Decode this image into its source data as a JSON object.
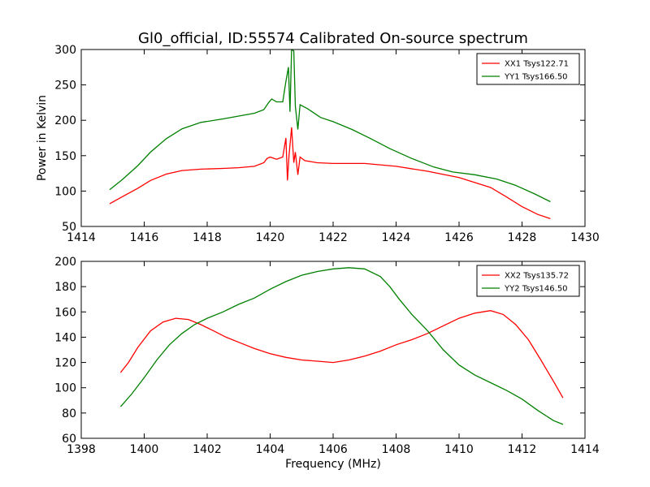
{
  "figure": {
    "title": "Gl0_official, ID:55574 Calibrated On-source spectrum"
  },
  "chart_data": [
    {
      "type": "line",
      "title": "Gl0_official, ID:55574 Calibrated On-source spectrum",
      "xlabel": "",
      "ylabel": "Power in Kelvin",
      "xlim": [
        1414,
        1430
      ],
      "ylim": [
        50,
        300
      ],
      "xticks": [
        1414,
        1416,
        1418,
        1420,
        1422,
        1424,
        1426,
        1428,
        1430
      ],
      "yticks": [
        50,
        100,
        150,
        200,
        250,
        300
      ],
      "grid": false,
      "legend_position": "top-right",
      "series": [
        {
          "name": "XX1 Tsys122.71",
          "color": "#ff0000",
          "points": [
            [
              1414.9,
              82
            ],
            [
              1415.3,
              92
            ],
            [
              1415.8,
              104
            ],
            [
              1416.2,
              115
            ],
            [
              1416.7,
              124
            ],
            [
              1417.2,
              129
            ],
            [
              1417.8,
              131
            ],
            [
              1418.5,
              132
            ],
            [
              1419.0,
              133
            ],
            [
              1419.5,
              135
            ],
            [
              1419.8,
              140
            ],
            [
              1419.9,
              146
            ],
            [
              1420.0,
              148
            ],
            [
              1420.2,
              145
            ],
            [
              1420.4,
              148
            ],
            [
              1420.5,
              175
            ],
            [
              1420.55,
              115
            ],
            [
              1420.6,
              150
            ],
            [
              1420.68,
              190
            ],
            [
              1420.75,
              140
            ],
            [
              1420.8,
              155
            ],
            [
              1420.88,
              123
            ],
            [
              1420.95,
              148
            ],
            [
              1421.1,
              143
            ],
            [
              1421.5,
              140
            ],
            [
              1422.0,
              139
            ],
            [
              1423.0,
              139
            ],
            [
              1424.0,
              135
            ],
            [
              1425.0,
              128
            ],
            [
              1426.0,
              119
            ],
            [
              1426.5,
              112
            ],
            [
              1427.0,
              105
            ],
            [
              1427.5,
              92
            ],
            [
              1428.0,
              78
            ],
            [
              1428.5,
              67
            ],
            [
              1428.9,
              61
            ]
          ]
        },
        {
          "name": "YY1 Tsys166.50",
          "color": "#008000",
          "points": [
            [
              1414.9,
              102
            ],
            [
              1415.3,
              116
            ],
            [
              1415.8,
              136
            ],
            [
              1416.2,
              155
            ],
            [
              1416.7,
              174
            ],
            [
              1417.2,
              188
            ],
            [
              1417.8,
              197
            ],
            [
              1418.5,
              202
            ],
            [
              1419.0,
              206
            ],
            [
              1419.5,
              210
            ],
            [
              1419.8,
              215
            ],
            [
              1419.95,
              225
            ],
            [
              1420.05,
              230
            ],
            [
              1420.2,
              226
            ],
            [
              1420.4,
              226
            ],
            [
              1420.5,
              255
            ],
            [
              1420.58,
              275
            ],
            [
              1420.63,
              212
            ],
            [
              1420.68,
              300
            ],
            [
              1420.75,
              298
            ],
            [
              1420.8,
              220
            ],
            [
              1420.88,
              187
            ],
            [
              1420.95,
              222
            ],
            [
              1421.2,
              216
            ],
            [
              1421.6,
              204
            ],
            [
              1422.0,
              198
            ],
            [
              1422.6,
              187
            ],
            [
              1423.2,
              174
            ],
            [
              1423.8,
              160
            ],
            [
              1424.5,
              146
            ],
            [
              1425.2,
              134
            ],
            [
              1425.8,
              127
            ],
            [
              1426.5,
              123
            ],
            [
              1427.2,
              117
            ],
            [
              1427.8,
              108
            ],
            [
              1428.4,
              96
            ],
            [
              1428.9,
              85
            ]
          ]
        }
      ]
    },
    {
      "type": "line",
      "title": "",
      "xlabel": "Frequency (MHz)",
      "ylabel": "",
      "xlim": [
        1398,
        1414
      ],
      "ylim": [
        60,
        200
      ],
      "xticks": [
        1398,
        1400,
        1402,
        1404,
        1406,
        1408,
        1410,
        1412,
        1414
      ],
      "yticks": [
        60,
        80,
        100,
        120,
        140,
        160,
        180,
        200
      ],
      "grid": false,
      "legend_position": "top-right",
      "series": [
        {
          "name": "XX2 Tsys135.72",
          "color": "#ff0000",
          "points": [
            [
              1399.25,
              112
            ],
            [
              1399.5,
              120
            ],
            [
              1399.8,
              132
            ],
            [
              1400.2,
              145
            ],
            [
              1400.6,
              152
            ],
            [
              1401.0,
              155
            ],
            [
              1401.4,
              154
            ],
            [
              1401.8,
              150
            ],
            [
              1402.2,
              145
            ],
            [
              1402.6,
              140
            ],
            [
              1403.0,
              136
            ],
            [
              1403.5,
              131
            ],
            [
              1404.0,
              127
            ],
            [
              1404.5,
              124
            ],
            [
              1405.0,
              122
            ],
            [
              1405.5,
              121
            ],
            [
              1406.0,
              120
            ],
            [
              1406.5,
              122
            ],
            [
              1407.0,
              125
            ],
            [
              1407.5,
              129
            ],
            [
              1408.0,
              134
            ],
            [
              1408.5,
              138
            ],
            [
              1409.0,
              143
            ],
            [
              1409.5,
              149
            ],
            [
              1410.0,
              155
            ],
            [
              1410.5,
              159
            ],
            [
              1411.0,
              161
            ],
            [
              1411.4,
              158
            ],
            [
              1411.8,
              150
            ],
            [
              1412.2,
              138
            ],
            [
              1412.6,
              122
            ],
            [
              1413.0,
              105
            ],
            [
              1413.3,
              92
            ]
          ]
        },
        {
          "name": "YY2 Tsys146.50",
          "color": "#008000",
          "points": [
            [
              1399.25,
              85
            ],
            [
              1399.6,
              95
            ],
            [
              1400.0,
              108
            ],
            [
              1400.4,
              122
            ],
            [
              1400.8,
              134
            ],
            [
              1401.2,
              143
            ],
            [
              1401.6,
              150
            ],
            [
              1402.0,
              155
            ],
            [
              1402.5,
              160
            ],
            [
              1403.0,
              166
            ],
            [
              1403.5,
              171
            ],
            [
              1404.0,
              178
            ],
            [
              1404.5,
              184
            ],
            [
              1405.0,
              189
            ],
            [
              1405.5,
              192
            ],
            [
              1406.0,
              194
            ],
            [
              1406.5,
              195
            ],
            [
              1407.0,
              194
            ],
            [
              1407.5,
              188
            ],
            [
              1407.8,
              180
            ],
            [
              1408.1,
              170
            ],
            [
              1408.5,
              158
            ],
            [
              1409.0,
              145
            ],
            [
              1409.5,
              130
            ],
            [
              1410.0,
              118
            ],
            [
              1410.5,
              110
            ],
            [
              1411.0,
              104
            ],
            [
              1411.5,
              98
            ],
            [
              1412.0,
              91
            ],
            [
              1412.5,
              82
            ],
            [
              1413.0,
              74
            ],
            [
              1413.3,
              71
            ]
          ]
        }
      ]
    }
  ]
}
